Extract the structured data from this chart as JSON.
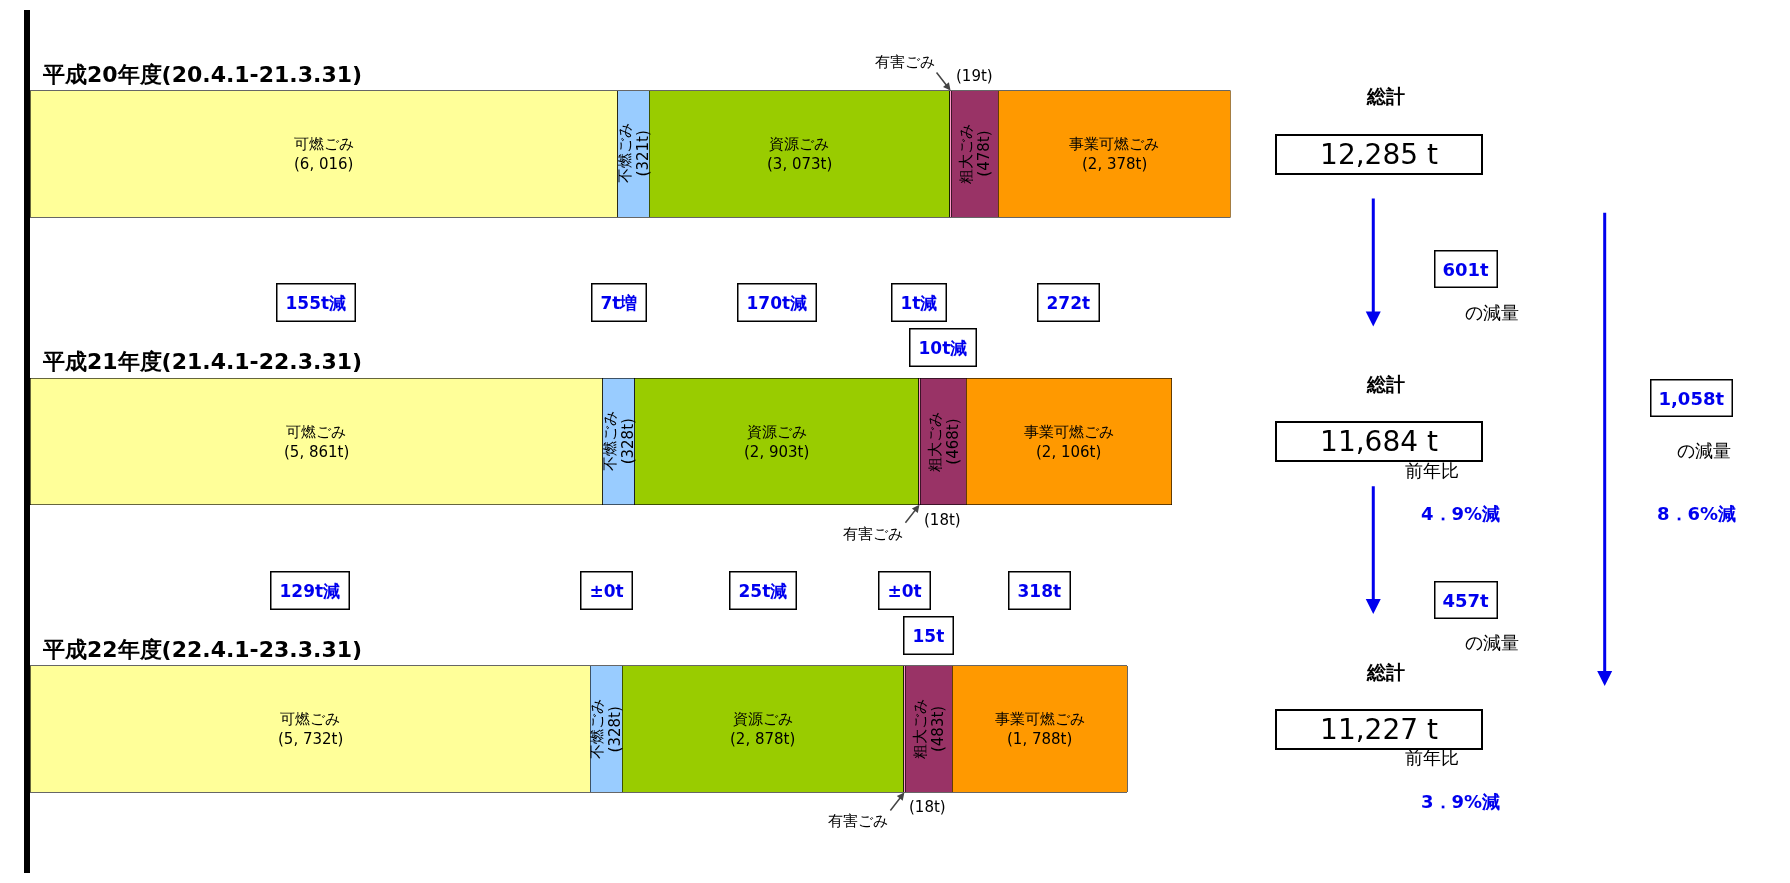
{
  "chart_data": {
    "type": "bar",
    "orientation": "horizontal",
    "stacked": true,
    "tick_labels": "y",
    "categories": [
      "平成20年度(20.4.1-21.3.31)",
      "平成21年度(21.4.1-22.3.31)",
      "平成22年度(22.4.1-23.3.31)"
    ],
    "series": [
      {
        "name": "可燃ごみ",
        "color": "#ffff99",
        "values": [
          6016,
          5861,
          5732
        ],
        "value_labels": [
          "(6, 016)",
          "(5, 861t)",
          "(5, 732t)"
        ]
      },
      {
        "name": "不燃ごみ",
        "color": "#99ccff",
        "values": [
          321,
          328,
          328
        ],
        "value_labels": [
          "(321t)",
          "(328t)",
          "(328t)"
        ]
      },
      {
        "name": "資源ごみ",
        "color": "#99cc00",
        "values": [
          3073,
          2903,
          2878
        ],
        "value_labels": [
          "(3, 073t)",
          "(2, 903t)",
          "(2, 878t)"
        ]
      },
      {
        "name": "有害ごみ",
        "color": "#ff99cc",
        "values": [
          19,
          18,
          18
        ],
        "value_labels": [
          "(19t)",
          "(18t)",
          "(18t)"
        ]
      },
      {
        "name": "粗大ごみ",
        "color": "#993366",
        "values": [
          478,
          468,
          483
        ],
        "value_labels": [
          "(478t)",
          "(468t)",
          "(483t)"
        ]
      },
      {
        "name": "事業可燃ごみ",
        "color": "#ff9900",
        "values": [
          2378,
          2106,
          1788
        ],
        "value_labels": [
          "(2, 378t)",
          "(2, 106t)",
          "(1, 788t)"
        ]
      }
    ],
    "annotations": [
      "155t減",
      "7t増",
      "170t減",
      "1t減",
      "10t減",
      "272t",
      "129t減",
      "±0t",
      "25t減",
      "±0t",
      "15t",
      "318t",
      "総計",
      "12,285 t",
      "総計",
      "11,684 t",
      "総計",
      "11,227 t",
      "601t",
      "の減量",
      "前年比",
      "4．9%減",
      "457t",
      "の減量",
      "前年比",
      "3．9%減",
      "1,058t",
      "の減量",
      "8．6%減"
    ]
  }
}
